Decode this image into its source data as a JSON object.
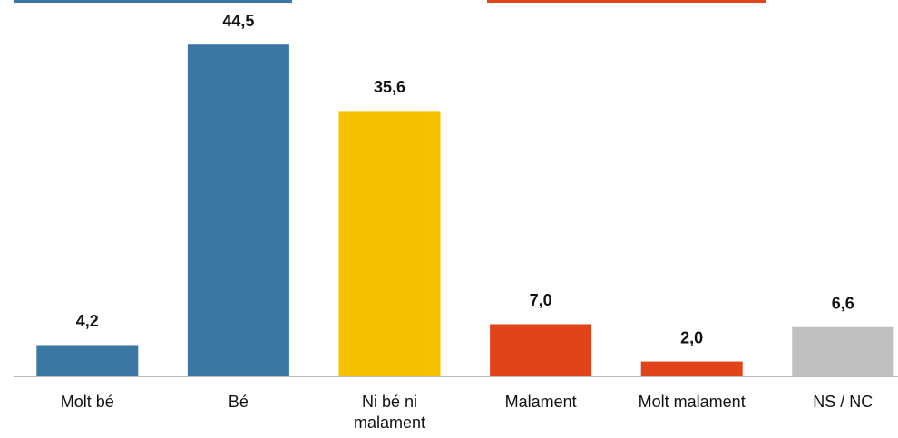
{
  "chart_data": {
    "type": "bar",
    "categories": [
      "Molt bé",
      "Bé",
      "Ni bé ni malament",
      "Malament",
      "Molt malament",
      "NS / NC"
    ],
    "values": [
      4.2,
      44.5,
      35.6,
      7.0,
      2.0,
      6.6
    ],
    "value_labels": [
      "4,2",
      "44,5",
      "35,6",
      "7,0",
      "2,0",
      "6,6"
    ],
    "colors": [
      "#3a77a3",
      "#3a77a3",
      "#f5c200",
      "#e0441a",
      "#e0441a",
      "#c0c0c0"
    ],
    "ylim": [
      0,
      50
    ]
  }
}
